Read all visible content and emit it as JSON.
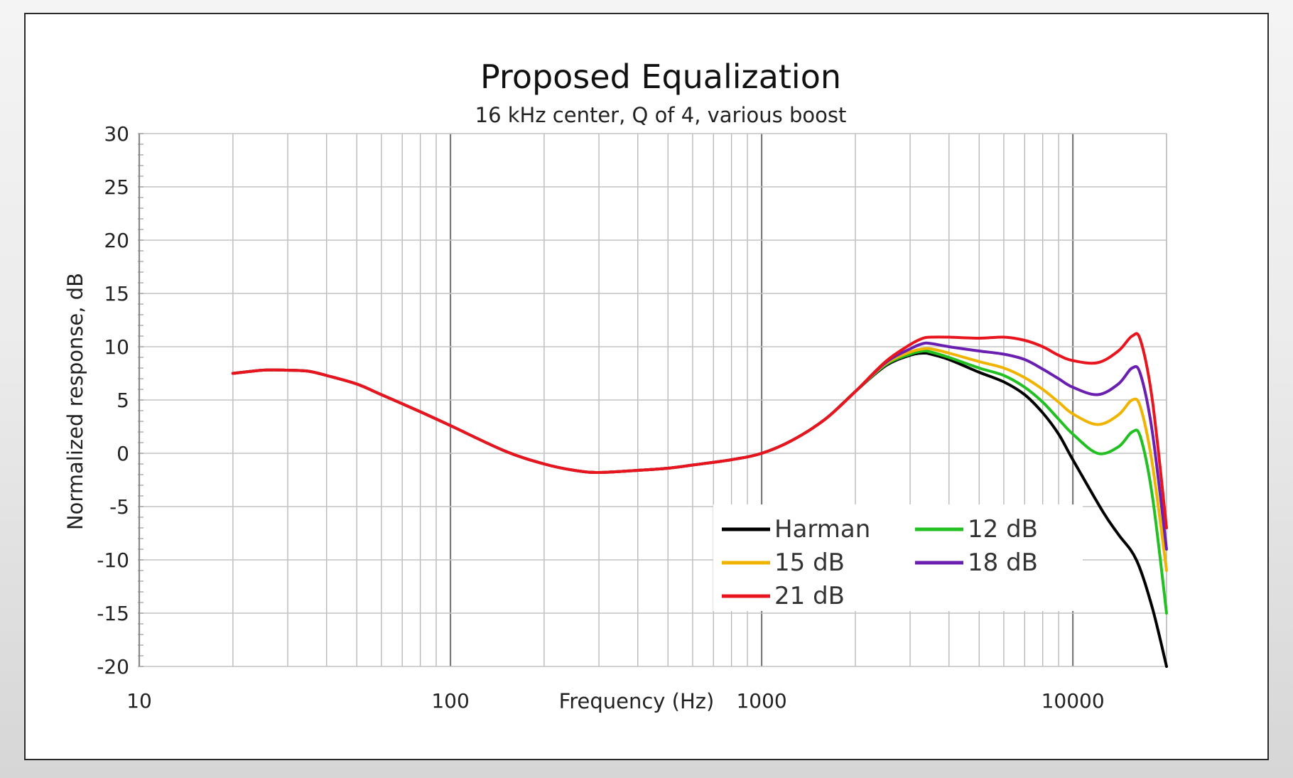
{
  "chart_data": {
    "type": "line",
    "title": "Proposed Equalization",
    "subtitle": "16 kHz center, Q of 4, various boost",
    "xlabel": "Frequency (Hz)",
    "ylabel": "Normalized response, dB",
    "xscale": "log",
    "xlim": [
      10,
      20000
    ],
    "ylim": [
      -20,
      30
    ],
    "x_ticks": [
      10,
      100,
      1000,
      10000
    ],
    "x_tick_labels": [
      "10",
      "100",
      "1000",
      "10000"
    ],
    "y_ticks": [
      30,
      25,
      20,
      15,
      10,
      5,
      0,
      -5,
      -10,
      -15,
      -20
    ],
    "y_tick_labels": [
      "30",
      "25",
      "20",
      "15",
      "10",
      "5",
      "0",
      "-5",
      "-10",
      "-15",
      "-20"
    ],
    "grid": true,
    "legend_position": "bottom-right",
    "legend_columns": 2,
    "series": [
      {
        "name": "Harman",
        "color": "#000000",
        "x": [
          20,
          25,
          30,
          35,
          40,
          50,
          60,
          80,
          100,
          150,
          200,
          250,
          300,
          400,
          500,
          600,
          800,
          1000,
          1250,
          1600,
          2000,
          2500,
          3000,
          3300,
          3500,
          4000,
          5000,
          6000,
          7000,
          8000,
          9000,
          10000,
          12500,
          14000,
          16000,
          18000,
          20000
        ],
        "y": [
          7.5,
          7.8,
          7.8,
          7.7,
          7.3,
          6.5,
          5.5,
          3.9,
          2.6,
          0.2,
          -1.0,
          -1.6,
          -1.8,
          -1.6,
          -1.4,
          -1.1,
          -0.6,
          0.0,
          1.2,
          3.2,
          5.8,
          8.2,
          9.2,
          9.4,
          9.3,
          8.8,
          7.6,
          6.7,
          5.5,
          3.8,
          1.8,
          -0.6,
          -5.5,
          -7.6,
          -10.0,
          -14.5,
          -20.0
        ]
      },
      {
        "name": "12 dB",
        "color": "#22c022",
        "x": [
          20,
          25,
          30,
          35,
          40,
          50,
          60,
          80,
          100,
          150,
          200,
          250,
          300,
          400,
          500,
          600,
          800,
          1000,
          1250,
          1600,
          2000,
          2500,
          3000,
          3300,
          3500,
          4000,
          5000,
          6000,
          7000,
          8000,
          9000,
          10000,
          12000,
          14000,
          15500,
          16500,
          18000,
          20000
        ],
        "y": [
          7.5,
          7.8,
          7.8,
          7.7,
          7.3,
          6.5,
          5.5,
          3.9,
          2.6,
          0.2,
          -1.0,
          -1.6,
          -1.8,
          -1.6,
          -1.4,
          -1.1,
          -0.6,
          0.0,
          1.2,
          3.2,
          5.8,
          8.3,
          9.3,
          9.6,
          9.5,
          9.0,
          8.0,
          7.3,
          6.2,
          4.8,
          3.2,
          1.8,
          0.0,
          0.6,
          2.0,
          1.5,
          -4.0,
          -15.0
        ]
      },
      {
        "name": "15 dB",
        "color": "#f0b400",
        "x": [
          20,
          25,
          30,
          35,
          40,
          50,
          60,
          80,
          100,
          150,
          200,
          250,
          300,
          400,
          500,
          600,
          800,
          1000,
          1250,
          1600,
          2000,
          2500,
          3000,
          3300,
          3500,
          4000,
          5000,
          6000,
          7000,
          8000,
          9000,
          10000,
          12000,
          14000,
          15500,
          16500,
          18000,
          20000
        ],
        "y": [
          7.5,
          7.8,
          7.8,
          7.7,
          7.3,
          6.5,
          5.5,
          3.9,
          2.6,
          0.2,
          -1.0,
          -1.6,
          -1.8,
          -1.6,
          -1.4,
          -1.1,
          -0.6,
          0.0,
          1.2,
          3.2,
          5.8,
          8.4,
          9.5,
          9.8,
          9.8,
          9.4,
          8.6,
          8.0,
          7.1,
          6.0,
          4.8,
          3.7,
          2.7,
          3.6,
          5.0,
          4.3,
          -1.0,
          -11.0
        ]
      },
      {
        "name": "18 dB",
        "color": "#6a1fb0",
        "x": [
          20,
          25,
          30,
          35,
          40,
          50,
          60,
          80,
          100,
          150,
          200,
          250,
          300,
          400,
          500,
          600,
          800,
          1000,
          1250,
          1600,
          2000,
          2500,
          3000,
          3300,
          3500,
          4000,
          5000,
          6000,
          7000,
          8000,
          9000,
          10000,
          12000,
          14000,
          15500,
          16500,
          18000,
          20000
        ],
        "y": [
          7.5,
          7.8,
          7.8,
          7.7,
          7.3,
          6.5,
          5.5,
          3.9,
          2.6,
          0.2,
          -1.0,
          -1.6,
          -1.8,
          -1.6,
          -1.4,
          -1.1,
          -0.6,
          0.0,
          1.2,
          3.2,
          5.8,
          8.5,
          9.8,
          10.3,
          10.3,
          10.0,
          9.6,
          9.3,
          8.8,
          7.9,
          7.0,
          6.2,
          5.5,
          6.5,
          8.0,
          7.4,
          2.0,
          -9.0
        ]
      },
      {
        "name": "21 dB",
        "color": "#e8141e",
        "x": [
          20,
          25,
          30,
          35,
          40,
          50,
          60,
          80,
          100,
          150,
          200,
          250,
          300,
          400,
          500,
          600,
          800,
          1000,
          1250,
          1600,
          2000,
          2500,
          3000,
          3300,
          3500,
          4000,
          5000,
          6000,
          7000,
          8000,
          9000,
          10000,
          12000,
          14000,
          15500,
          16500,
          18000,
          20000
        ],
        "y": [
          7.5,
          7.8,
          7.8,
          7.7,
          7.3,
          6.5,
          5.5,
          3.9,
          2.6,
          0.2,
          -1.0,
          -1.6,
          -1.8,
          -1.6,
          -1.4,
          -1.1,
          -0.6,
          0.0,
          1.2,
          3.2,
          5.8,
          8.6,
          10.2,
          10.8,
          10.9,
          10.9,
          10.8,
          10.9,
          10.6,
          10.0,
          9.2,
          8.7,
          8.5,
          9.6,
          11.0,
          10.6,
          5.0,
          -7.0
        ]
      }
    ]
  }
}
